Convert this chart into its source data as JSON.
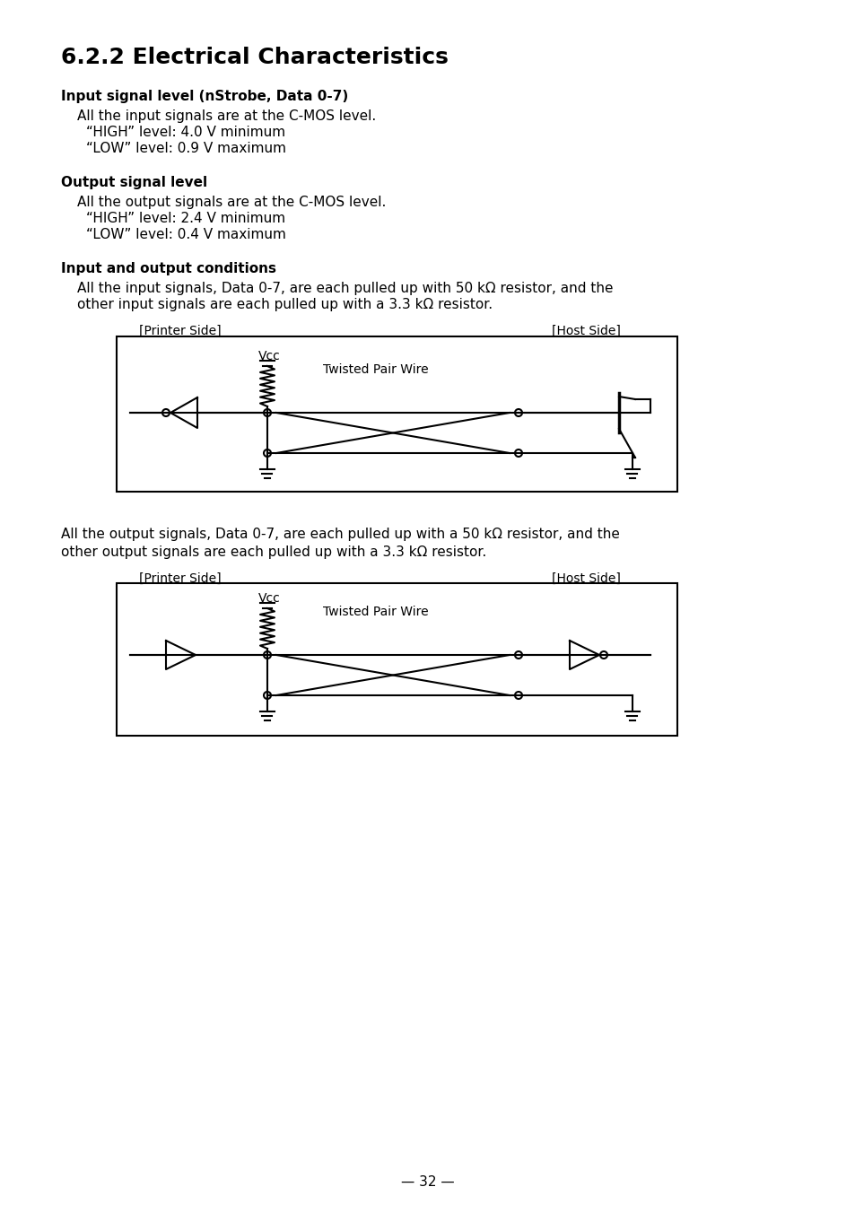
{
  "title": "6.2.2 Electrical Characteristics",
  "title_fontsize": 18,
  "bg_color": "#ffffff",
  "text_color": "#000000",
  "sections": [
    {
      "heading": "Input signal level (nStrobe, Data 0-7)",
      "lines": [
        "All the input signals are at the C-MOS level.",
        "“HIGH” level: 4.0 V minimum",
        "“LOW” level: 0.9 V maximum"
      ]
    },
    {
      "heading": "Output signal level",
      "lines": [
        "All the output signals are at the C-MOS level.",
        "“HIGH” level: 2.4 V minimum",
        "“LOW” level: 0.4 V maximum"
      ]
    },
    {
      "heading": "Input and output conditions",
      "lines": [
        "All the input signals, Data 0-7, are each pulled up with 50 kΩ resistor, and the",
        "other input signals are each pulled up with a 3.3 kΩ resistor."
      ]
    }
  ],
  "diagram1_label_left": "[Printer Side]",
  "diagram1_label_right": "[Host Side]",
  "diagram1_vcc_label": "Vcc",
  "diagram1_wire_label": "Twisted Pair Wire",
  "diagram2_text_lines": [
    "All the output signals, Data 0-7, are each pulled up with a 50 kΩ resistor, and the",
    "other output signals are each pulled up with a 3.3 kΩ resistor."
  ],
  "diagram2_label_left": "[Printer Side]",
  "diagram2_label_right": "[Host Side]",
  "diagram2_vcc_label": "Vcc",
  "diagram2_wire_label": "Twisted Pair Wire",
  "page_number": "— 32 —"
}
